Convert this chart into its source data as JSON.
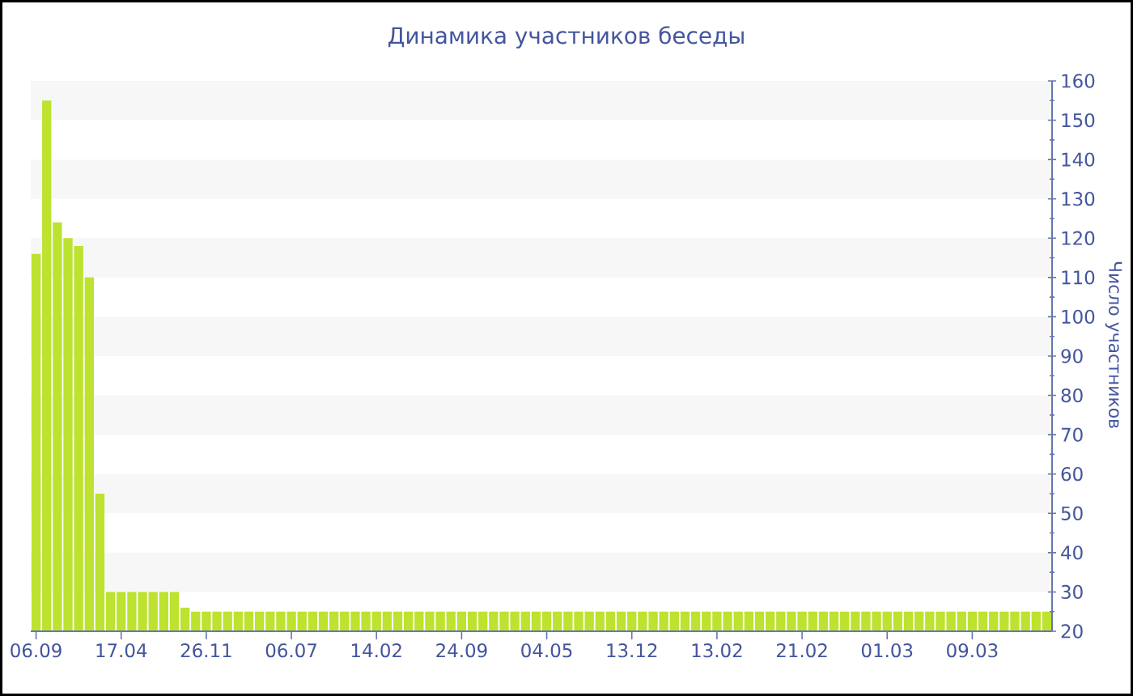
{
  "chart_data": {
    "type": "bar",
    "title": "Динамика участников беседы",
    "ylabel": "Число участников",
    "categories": [
      "06.09",
      null,
      null,
      null,
      null,
      null,
      null,
      null,
      "17.04",
      null,
      null,
      null,
      null,
      null,
      null,
      null,
      "26.11",
      null,
      null,
      null,
      null,
      null,
      null,
      null,
      "06.07",
      null,
      null,
      null,
      null,
      null,
      null,
      null,
      "14.02",
      null,
      null,
      null,
      null,
      null,
      null,
      null,
      "24.09",
      null,
      null,
      null,
      null,
      null,
      null,
      null,
      "04.05",
      null,
      null,
      null,
      null,
      null,
      null,
      null,
      "13.12",
      null,
      null,
      null,
      null,
      null,
      null,
      null,
      "13.02",
      null,
      null,
      null,
      null,
      null,
      null,
      null,
      "21.02",
      null,
      null,
      null,
      null,
      null,
      null,
      null,
      "01.03",
      null,
      null,
      null,
      null,
      null,
      null,
      null,
      "09.03",
      null,
      null,
      null,
      null,
      null,
      null,
      null
    ],
    "values": [
      116,
      155,
      124,
      120,
      118,
      110,
      55,
      30,
      30,
      30,
      30,
      30,
      30,
      30,
      26,
      25,
      25,
      25,
      25,
      25,
      25,
      25,
      25,
      25,
      25,
      25,
      25,
      25,
      25,
      25,
      25,
      25,
      25,
      25,
      25,
      25,
      25,
      25,
      25,
      25,
      25,
      25,
      25,
      25,
      25,
      25,
      25,
      25,
      25,
      25,
      25,
      25,
      25,
      25,
      25,
      25,
      25,
      25,
      25,
      25,
      25,
      25,
      25,
      25,
      25,
      25,
      25,
      25,
      25,
      25,
      25,
      25,
      25,
      25,
      25,
      25,
      25,
      25,
      25,
      25,
      25,
      25,
      25,
      25,
      25,
      25,
      25,
      25,
      25,
      25,
      25,
      25,
      25,
      25,
      25,
      25
    ],
    "color": "#bde22f",
    "ylim": [
      20,
      160
    ],
    "yticks": [
      20,
      30,
      40,
      50,
      60,
      70,
      80,
      90,
      100,
      110,
      120,
      130,
      140,
      150,
      160
    ],
    "bands": [
      {
        "axis": "y",
        "from": 30,
        "to": 40,
        "color": "#f7f7f7"
      },
      {
        "axis": "y",
        "from": 50,
        "to": 60,
        "color": "#f7f7f7"
      },
      {
        "axis": "y",
        "from": 70,
        "to": 80,
        "color": "#f7f7f7"
      },
      {
        "axis": "y",
        "from": 90,
        "to": 100,
        "color": "#f7f7f7"
      },
      {
        "axis": "y",
        "from": 110,
        "to": 120,
        "color": "#f7f7f7"
      },
      {
        "axis": "y",
        "from": 130,
        "to": 140,
        "color": "#f7f7f7"
      },
      {
        "axis": "y",
        "from": 150,
        "to": 160,
        "color": "#f7f7f7"
      }
    ]
  }
}
